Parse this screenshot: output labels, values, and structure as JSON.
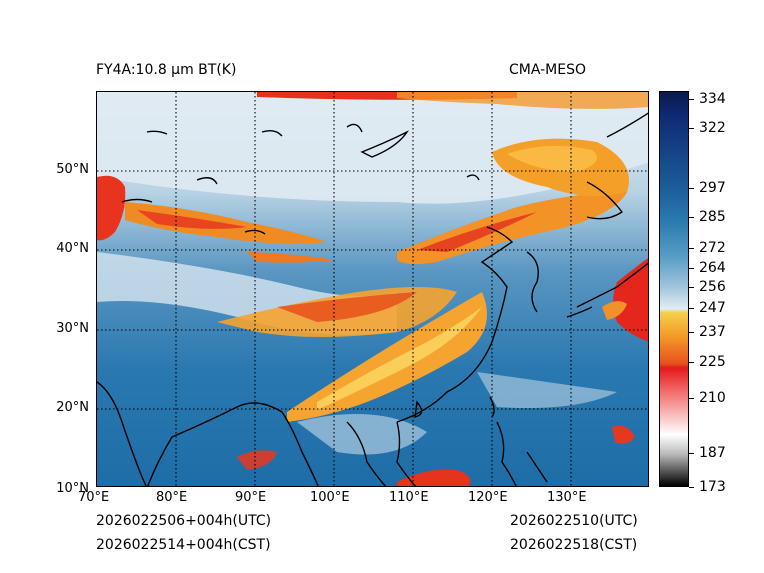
{
  "header": {
    "left_title": "FY4A:10.8 µm BT(K)",
    "right_title": "CMA-MESO"
  },
  "map": {
    "lon_labels": [
      "70°E",
      "80°E",
      "90°E",
      "100°E",
      "110°E",
      "120°E",
      "130°E"
    ],
    "lat_labels": [
      "10°N",
      "20°N",
      "30°N",
      "40°N",
      "50°N"
    ],
    "lon_range": [
      70,
      140
    ],
    "lat_range": [
      10,
      60
    ],
    "gridlines": "dotted"
  },
  "colorbar": {
    "unit": "K",
    "min": 173,
    "max": 338,
    "tick_values": [
      173,
      187,
      210,
      225,
      237,
      247,
      256,
      264,
      272,
      285,
      297,
      322,
      334
    ],
    "tick_labels": [
      "173",
      "187",
      "210",
      "225",
      "237",
      "247",
      "256",
      "264",
      "272",
      "285",
      "297",
      "322",
      "334"
    ]
  },
  "footer": {
    "left_line1": "2026022506+004h(UTC)",
    "left_line2": "2026022514+004h(CST)",
    "right_line1": "2026022510(UTC)",
    "right_line2": "2026022518(CST)"
  },
  "colors": {
    "ocean_deep": "#1e6ea8",
    "land_cool": "#c8dce8",
    "cloud_orange": "#f39a1e",
    "cloud_red": "#e8231a"
  }
}
